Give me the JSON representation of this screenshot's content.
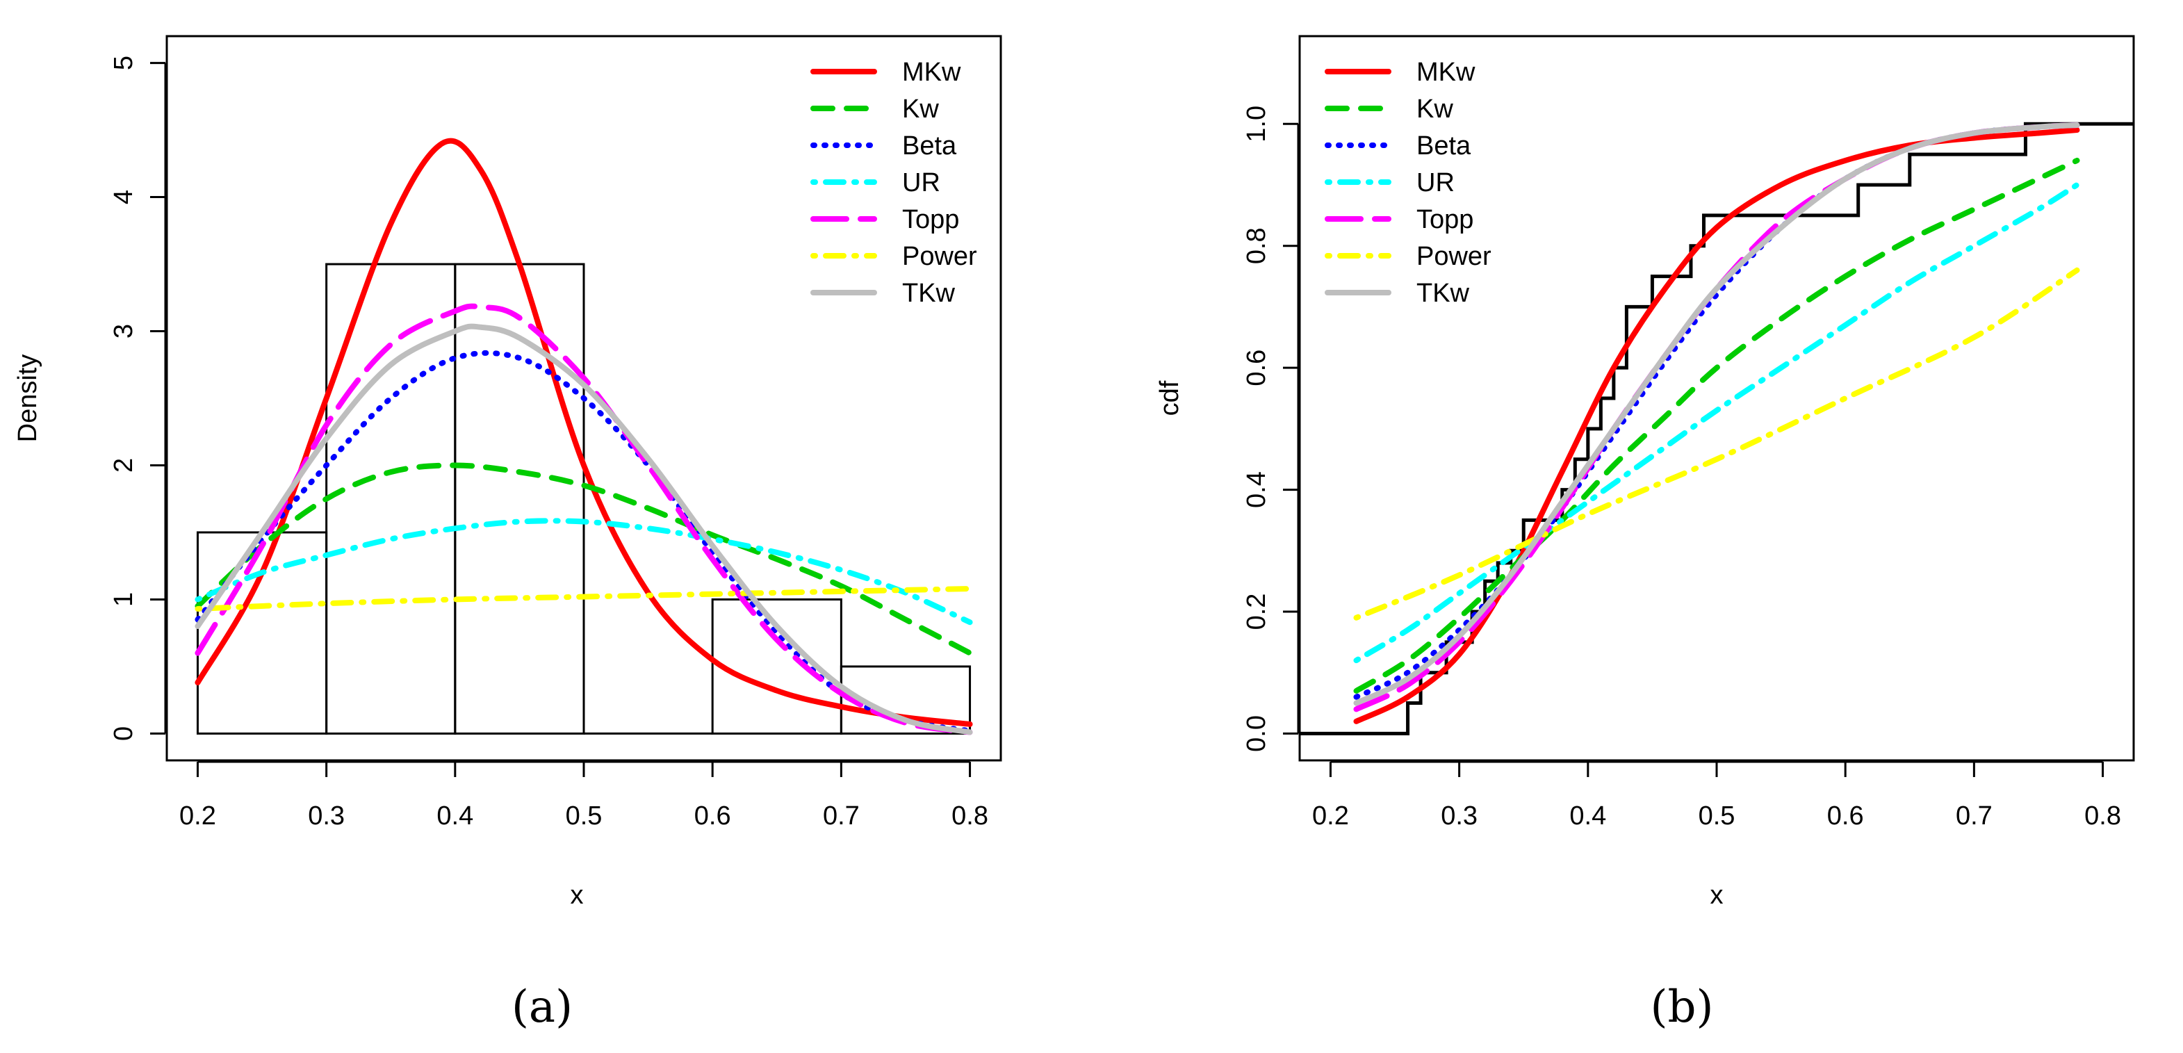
{
  "captions": [
    "(a)",
    "(b)"
  ],
  "colors": {
    "MKw": "#ff0000",
    "Kw": "#00cc00",
    "Beta": "#0000ff",
    "UR": "#00ffff",
    "Topp": "#ff00ff",
    "Power": "#ffff00",
    "TKw": "#bebebe",
    "frame": "#000000"
  },
  "chart_data": [
    {
      "type": "histogram",
      "title": "",
      "xlabel": "x",
      "ylabel": "Density",
      "xlim": [
        0.2,
        0.8
      ],
      "ylim": [
        0,
        5
      ],
      "xticks": [
        "0.2",
        "0.3",
        "0.4",
        "0.5",
        "0.6",
        "0.7",
        "0.8"
      ],
      "yticks": [
        "0",
        "1",
        "2",
        "3",
        "4",
        "5"
      ],
      "legend_position": "top-right",
      "bins": [
        {
          "from": 0.2,
          "to": 0.3,
          "density": 1.5
        },
        {
          "from": 0.3,
          "to": 0.4,
          "density": 3.5
        },
        {
          "from": 0.4,
          "to": 0.5,
          "density": 3.5
        },
        {
          "from": 0.5,
          "to": 0.6,
          "density": 0.0
        },
        {
          "from": 0.6,
          "to": 0.7,
          "density": 1.0
        },
        {
          "from": 0.7,
          "to": 0.8,
          "density": 0.5
        }
      ],
      "series": [
        {
          "name": "MKw",
          "style": "solid",
          "x": [
            0.2,
            0.25,
            0.3,
            0.35,
            0.39,
            0.42,
            0.45,
            0.5,
            0.55,
            0.6,
            0.65,
            0.7,
            0.75,
            0.8
          ],
          "y": [
            0.38,
            1.2,
            2.5,
            3.8,
            4.4,
            4.2,
            3.5,
            2.0,
            1.05,
            0.55,
            0.32,
            0.2,
            0.12,
            0.07
          ]
        },
        {
          "name": "Kw",
          "style": "dashed",
          "x": [
            0.2,
            0.25,
            0.3,
            0.35,
            0.4,
            0.45,
            0.5,
            0.55,
            0.6,
            0.65,
            0.7,
            0.75,
            0.8
          ],
          "y": [
            0.95,
            1.4,
            1.75,
            1.95,
            2.0,
            1.95,
            1.85,
            1.68,
            1.48,
            1.3,
            1.1,
            0.85,
            0.6
          ]
        },
        {
          "name": "Beta",
          "style": "dotted",
          "x": [
            0.2,
            0.25,
            0.3,
            0.35,
            0.4,
            0.45,
            0.5,
            0.55,
            0.6,
            0.65,
            0.7,
            0.75,
            0.8
          ],
          "y": [
            0.85,
            1.45,
            2.0,
            2.5,
            2.8,
            2.8,
            2.5,
            2.0,
            1.35,
            0.75,
            0.3,
            0.1,
            0.02
          ]
        },
        {
          "name": "UR",
          "style": "dotdash",
          "x": [
            0.2,
            0.25,
            0.3,
            0.35,
            0.4,
            0.45,
            0.5,
            0.55,
            0.6,
            0.65,
            0.7,
            0.75,
            0.8
          ],
          "y": [
            1.0,
            1.2,
            1.33,
            1.45,
            1.53,
            1.58,
            1.58,
            1.53,
            1.45,
            1.35,
            1.22,
            1.05,
            0.83
          ]
        },
        {
          "name": "Topp",
          "style": "longdash",
          "x": [
            0.2,
            0.25,
            0.3,
            0.35,
            0.4,
            0.42,
            0.45,
            0.5,
            0.55,
            0.6,
            0.65,
            0.7,
            0.75,
            0.8
          ],
          "y": [
            0.6,
            1.4,
            2.3,
            2.9,
            3.15,
            3.18,
            3.1,
            2.65,
            2.0,
            1.3,
            0.7,
            0.3,
            0.08,
            0.01
          ]
        },
        {
          "name": "Power",
          "style": "dotdash",
          "x": [
            0.2,
            0.3,
            0.4,
            0.5,
            0.6,
            0.7,
            0.8
          ],
          "y": [
            0.93,
            0.97,
            1.0,
            1.02,
            1.04,
            1.06,
            1.08
          ]
        },
        {
          "name": "TKw",
          "style": "solid",
          "x": [
            0.2,
            0.25,
            0.3,
            0.35,
            0.4,
            0.42,
            0.45,
            0.5,
            0.55,
            0.6,
            0.65,
            0.7,
            0.75,
            0.8
          ],
          "y": [
            0.8,
            1.5,
            2.2,
            2.75,
            3.0,
            3.03,
            2.95,
            2.6,
            2.05,
            1.4,
            0.8,
            0.35,
            0.1,
            0.01
          ]
        }
      ]
    },
    {
      "type": "line",
      "title": "",
      "xlabel": "x",
      "ylabel": "cdf",
      "xlim": [
        0.2,
        0.8
      ],
      "ylim": [
        0.0,
        1.1
      ],
      "xticks": [
        "0.2",
        "0.3",
        "0.4",
        "0.5",
        "0.6",
        "0.7",
        "0.8"
      ],
      "yticks": [
        "0.0",
        "0.2",
        "0.4",
        "0.6",
        "0.8",
        "1.0"
      ],
      "legend_position": "top-left",
      "ecdf": {
        "x": [
          0.26,
          0.27,
          0.29,
          0.31,
          0.32,
          0.33,
          0.34,
          0.35,
          0.38,
          0.39,
          0.4,
          0.41,
          0.42,
          0.43,
          0.45,
          0.48,
          0.49,
          0.53,
          0.61,
          0.65,
          0.74,
          0.8
        ],
        "y": [
          0.05,
          0.1,
          0.15,
          0.2,
          0.25,
          0.28,
          0.3,
          0.35,
          0.4,
          0.45,
          0.5,
          0.55,
          0.6,
          0.7,
          0.75,
          0.8,
          0.85,
          0.85,
          0.9,
          0.95,
          1.0,
          1.0
        ]
      },
      "series": [
        {
          "name": "MKw",
          "style": "solid",
          "x": [
            0.22,
            0.26,
            0.3,
            0.34,
            0.38,
            0.42,
            0.46,
            0.5,
            0.55,
            0.6,
            0.65,
            0.7,
            0.75,
            0.78
          ],
          "y": [
            0.02,
            0.06,
            0.13,
            0.26,
            0.43,
            0.6,
            0.73,
            0.83,
            0.9,
            0.94,
            0.965,
            0.977,
            0.985,
            0.99
          ]
        },
        {
          "name": "Kw",
          "style": "dashed",
          "x": [
            0.22,
            0.26,
            0.3,
            0.34,
            0.38,
            0.42,
            0.46,
            0.5,
            0.55,
            0.6,
            0.65,
            0.7,
            0.75,
            0.78
          ],
          "y": [
            0.07,
            0.12,
            0.19,
            0.27,
            0.35,
            0.44,
            0.52,
            0.6,
            0.68,
            0.75,
            0.81,
            0.86,
            0.91,
            0.94
          ]
        },
        {
          "name": "Beta",
          "style": "dotted",
          "x": [
            0.22,
            0.26,
            0.3,
            0.34,
            0.38,
            0.42,
            0.46,
            0.5,
            0.55,
            0.6,
            0.65,
            0.7,
            0.75,
            0.78
          ],
          "y": [
            0.06,
            0.1,
            0.17,
            0.26,
            0.37,
            0.49,
            0.61,
            0.72,
            0.83,
            0.91,
            0.96,
            0.985,
            0.995,
            0.998
          ]
        },
        {
          "name": "UR",
          "style": "dotdash",
          "x": [
            0.22,
            0.26,
            0.3,
            0.34,
            0.38,
            0.42,
            0.46,
            0.5,
            0.55,
            0.6,
            0.65,
            0.7,
            0.75,
            0.78
          ],
          "y": [
            0.12,
            0.17,
            0.23,
            0.29,
            0.35,
            0.41,
            0.47,
            0.53,
            0.6,
            0.67,
            0.74,
            0.8,
            0.86,
            0.9
          ]
        },
        {
          "name": "Topp",
          "style": "longdash",
          "x": [
            0.22,
            0.26,
            0.3,
            0.34,
            0.38,
            0.42,
            0.46,
            0.5,
            0.55,
            0.6,
            0.65,
            0.7,
            0.75,
            0.78
          ],
          "y": [
            0.04,
            0.08,
            0.15,
            0.25,
            0.37,
            0.5,
            0.62,
            0.73,
            0.84,
            0.91,
            0.96,
            0.985,
            0.995,
            0.998
          ]
        },
        {
          "name": "Power",
          "style": "dotdash",
          "x": [
            0.22,
            0.3,
            0.4,
            0.5,
            0.6,
            0.7,
            0.78
          ],
          "y": [
            0.19,
            0.26,
            0.36,
            0.45,
            0.55,
            0.65,
            0.76
          ]
        },
        {
          "name": "TKw",
          "style": "solid",
          "x": [
            0.22,
            0.26,
            0.3,
            0.34,
            0.38,
            0.42,
            0.46,
            0.5,
            0.55,
            0.6,
            0.65,
            0.7,
            0.75,
            0.78
          ],
          "y": [
            0.05,
            0.09,
            0.16,
            0.26,
            0.38,
            0.5,
            0.62,
            0.73,
            0.83,
            0.91,
            0.96,
            0.985,
            0.995,
            0.998
          ]
        }
      ]
    }
  ]
}
